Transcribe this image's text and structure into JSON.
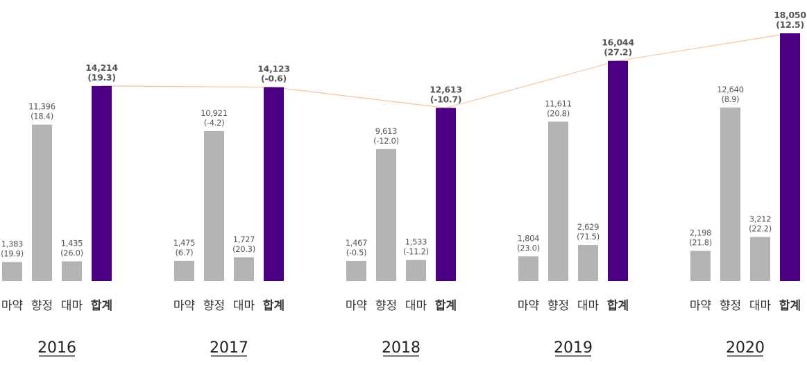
{
  "chart_data": {
    "type": "bar",
    "title": "",
    "xlabel": "",
    "ylabel": "",
    "ylim": [
      0,
      18050
    ],
    "categories": [
      "마약",
      "향정",
      "대마",
      "합계"
    ],
    "groups": [
      {
        "year": "2016",
        "values": [
          1383,
          11396,
          1435,
          14214
        ],
        "value_labels": [
          "1,383",
          "11,396",
          "1,435",
          "14,214"
        ],
        "changes": [
          "(19.9)",
          "(18.4)",
          "(26.0)",
          "(19.3)"
        ]
      },
      {
        "year": "2017",
        "values": [
          1475,
          10921,
          1727,
          14123
        ],
        "value_labels": [
          "1,475",
          "10,921",
          "1,727",
          "14,123"
        ],
        "changes": [
          "(6.7)",
          "(-4.2)",
          "(20.3)",
          "(-0.6)"
        ]
      },
      {
        "year": "2018",
        "values": [
          1467,
          9613,
          1533,
          12613
        ],
        "value_labels": [
          "1,467",
          "9,613",
          "1,533",
          "12,613"
        ],
        "changes": [
          "(-0.5)",
          "(-12.0)",
          "(-11.2)",
          "(-10.7)"
        ]
      },
      {
        "year": "2019",
        "values": [
          1804,
          11611,
          2629,
          16044
        ],
        "value_labels": [
          "1,804",
          "11,611",
          "2,629",
          "16,044"
        ],
        "changes": [
          "(23.0)",
          "(20.8)",
          "(71.5)",
          "(27.2)"
        ]
      },
      {
        "year": "2020",
        "values": [
          2198,
          12640,
          3212,
          18050
        ],
        "value_labels": [
          "2,198",
          "12,640",
          "3,212",
          "18,050"
        ],
        "changes": [
          "(21.8)",
          "(8.9)",
          "(22.2)",
          "(12.5)"
        ]
      }
    ],
    "trend_line": "합계",
    "colors": {
      "component": "#b3b3b3",
      "total": "#4b0082",
      "trend": "#f2c4a8"
    }
  }
}
